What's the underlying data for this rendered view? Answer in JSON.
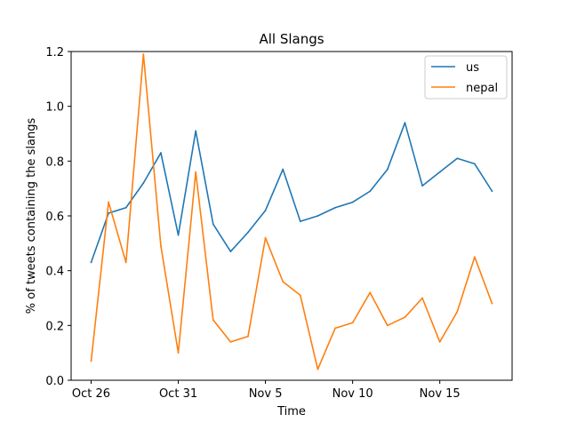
{
  "chart_data": {
    "type": "line",
    "title": "All Slangs",
    "xlabel": "Time",
    "ylabel": "% of tweets containing the slangs",
    "x": [
      "Oct 26",
      "Oct 27",
      "Oct 28",
      "Oct 29",
      "Oct 30",
      "Oct 31",
      "Nov 1",
      "Nov 2",
      "Nov 3",
      "Nov 4",
      "Nov 5",
      "Nov 6",
      "Nov 7",
      "Nov 8",
      "Nov 9",
      "Nov 10",
      "Nov 11",
      "Nov 12",
      "Nov 13",
      "Nov 14",
      "Nov 15",
      "Nov 16",
      "Nov 17",
      "Nov 18"
    ],
    "xticks": [
      "Oct 26",
      "Oct 31",
      "Nov 5",
      "Nov 10",
      "Nov 15"
    ],
    "ylim": [
      0,
      1.2
    ],
    "yticks": [
      "0.0",
      "0.2",
      "0.4",
      "0.6",
      "0.8",
      "1.0",
      "1.2"
    ],
    "legend_position": "top-right",
    "grid": false,
    "series": [
      {
        "name": "us",
        "color": "#1f77b4",
        "values": [
          0.43,
          0.61,
          0.63,
          0.72,
          0.83,
          0.53,
          0.91,
          0.57,
          0.47,
          0.54,
          0.62,
          0.77,
          0.58,
          0.6,
          0.63,
          0.65,
          0.69,
          0.77,
          0.94,
          0.71,
          0.76,
          0.81,
          0.79,
          0.69
        ]
      },
      {
        "name": "nepal",
        "color": "#ff7f0e",
        "values": [
          0.07,
          0.65,
          0.43,
          1.19,
          0.49,
          0.1,
          0.76,
          0.22,
          0.14,
          0.16,
          0.52,
          0.36,
          0.31,
          0.04,
          0.19,
          0.21,
          0.32,
          0.2,
          0.23,
          0.3,
          0.14,
          0.25,
          0.45,
          0.28
        ]
      }
    ]
  }
}
